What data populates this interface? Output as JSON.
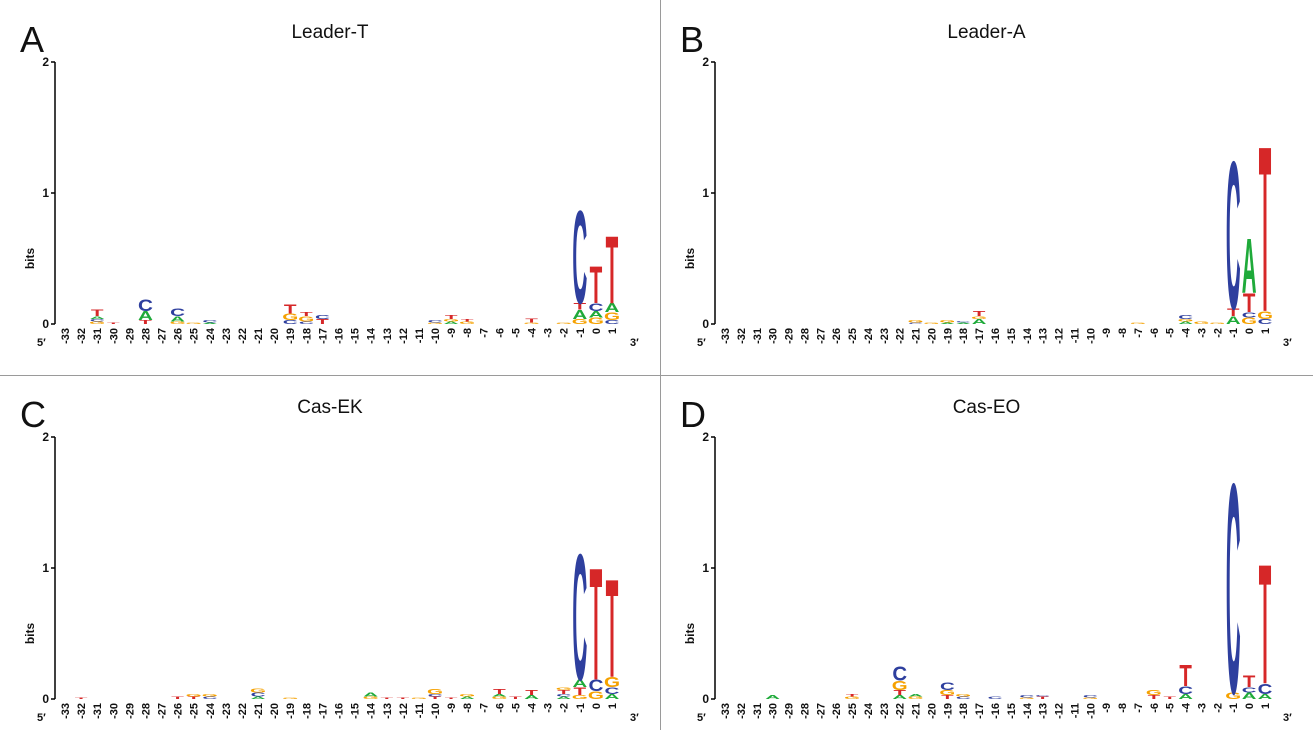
{
  "figure": {
    "colors": {
      "A": "#1faa3a",
      "C": "#2e3f9e",
      "G": "#f5a100",
      "T": "#d62728",
      "axis": "#000000",
      "divider": "#9a9a9a"
    },
    "five_prime": "5′",
    "three_prime": "3′",
    "ylabel": "bits",
    "yticks": [
      "0",
      "1",
      "2"
    ]
  },
  "chart_data": [
    {
      "type": "sequence-logo",
      "panel_letter": "A",
      "title": "Leader-T",
      "ylabel": "bits",
      "ylim": [
        0,
        2
      ],
      "positions": [
        "-33",
        "-32",
        "-31",
        "-30",
        "-29",
        "-28",
        "-27",
        "-26",
        "-25",
        "-24",
        "-23",
        "-22",
        "-21",
        "-20",
        "-19",
        "-18",
        "-17",
        "-16",
        "-15",
        "-14",
        "-13",
        "-12",
        "-11",
        "-10",
        "-9",
        "-8",
        "-7",
        "-6",
        "-5",
        "-4",
        "-3",
        "-2",
        "-1",
        "0",
        "1"
      ],
      "stacks": [
        [],
        [],
        [
          [
            "G",
            0.02
          ],
          [
            "C",
            0.02
          ],
          [
            "A",
            0.02
          ],
          [
            "T",
            0.05
          ]
        ],
        [
          [
            "T",
            0.01
          ]
        ],
        [],
        [
          [
            "T",
            0.03
          ],
          [
            "A",
            0.07
          ],
          [
            "C",
            0.09
          ]
        ],
        [],
        [
          [
            "G",
            0.02
          ],
          [
            "A",
            0.04
          ],
          [
            "C",
            0.06
          ]
        ],
        [
          [
            "G",
            0.01
          ]
        ],
        [
          [
            "A",
            0.01
          ],
          [
            "C",
            0.02
          ]
        ],
        [],
        [],
        [],
        [],
        [
          [
            "C",
            0.03
          ],
          [
            "G",
            0.05
          ],
          [
            "T",
            0.07
          ]
        ],
        [
          [
            "C",
            0.02
          ],
          [
            "G",
            0.04
          ],
          [
            "T",
            0.03
          ]
        ],
        [
          [
            "T",
            0.04
          ],
          [
            "C",
            0.03
          ]
        ],
        [],
        [],
        [],
        [],
        [],
        [],
        [
          [
            "G",
            0.01
          ],
          [
            "C",
            0.02
          ]
        ],
        [
          [
            "A",
            0.02
          ],
          [
            "G",
            0.02
          ],
          [
            "T",
            0.03
          ]
        ],
        [
          [
            "G",
            0.02
          ],
          [
            "T",
            0.02
          ]
        ],
        [],
        [],
        [],
        [
          [
            "G",
            0.01
          ],
          [
            "T",
            0.03
          ]
        ],
        [],
        [
          [
            "G",
            0.01
          ]
        ],
        [
          [
            "G",
            0.04
          ],
          [
            "A",
            0.07
          ],
          [
            "T",
            0.05
          ],
          [
            "C",
            0.73
          ]
        ],
        [
          [
            "G",
            0.05
          ],
          [
            "A",
            0.05
          ],
          [
            "C",
            0.06
          ],
          [
            "T",
            0.29
          ]
        ],
        [
          [
            "C",
            0.03
          ],
          [
            "G",
            0.06
          ],
          [
            "A",
            0.07
          ],
          [
            "T",
            0.53
          ]
        ]
      ]
    },
    {
      "type": "sequence-logo",
      "panel_letter": "B",
      "title": "Leader-A",
      "ylabel": "bits",
      "ylim": [
        0,
        2
      ],
      "positions": [
        "-33",
        "-32",
        "-31",
        "-30",
        "-29",
        "-28",
        "-27",
        "-26",
        "-25",
        "-24",
        "-23",
        "-22",
        "-21",
        "-20",
        "-19",
        "-18",
        "-17",
        "-16",
        "-15",
        "-14",
        "-13",
        "-12",
        "-11",
        "-10",
        "-9",
        "-8",
        "-7",
        "-6",
        "-5",
        "-4",
        "-3",
        "-2",
        "-1",
        "0",
        "1"
      ],
      "stacks": [
        [],
        [],
        [],
        [],
        [],
        [],
        [],
        [],
        [],
        [],
        [],
        [],
        [
          [
            "C",
            0.01
          ],
          [
            "G",
            0.02
          ]
        ],
        [
          [
            "G",
            0.01
          ]
        ],
        [
          [
            "A",
            0.01
          ],
          [
            "G",
            0.02
          ]
        ],
        [
          [
            "A",
            0.01
          ],
          [
            "C",
            0.01
          ]
        ],
        [
          [
            "A",
            0.04
          ],
          [
            "G",
            0.02
          ],
          [
            "T",
            0.04
          ]
        ],
        [],
        [],
        [],
        [],
        [],
        [],
        [],
        [],
        [],
        [
          [
            "G",
            0.01
          ]
        ],
        [],
        [],
        [
          [
            "A",
            0.02
          ],
          [
            "G",
            0.02
          ],
          [
            "C",
            0.03
          ]
        ],
        [
          [
            "G",
            0.02
          ]
        ],
        [
          [
            "G",
            0.01
          ]
        ],
        [
          [
            "A",
            0.06
          ],
          [
            "T",
            0.06
          ],
          [
            "C",
            1.16
          ]
        ],
        [
          [
            "G",
            0.05
          ],
          [
            "C",
            0.04
          ],
          [
            "T",
            0.15
          ],
          [
            "A",
            0.43
          ]
        ],
        [
          [
            "C",
            0.04
          ],
          [
            "G",
            0.06
          ],
          [
            "T",
            1.3
          ]
        ]
      ]
    },
    {
      "type": "sequence-logo",
      "panel_letter": "C",
      "title": "Cas-EK",
      "ylabel": "bits",
      "ylim": [
        0,
        2
      ],
      "positions": [
        "-33",
        "-32",
        "-31",
        "-30",
        "-29",
        "-28",
        "-27",
        "-26",
        "-25",
        "-24",
        "-23",
        "-22",
        "-21",
        "-20",
        "-19",
        "-18",
        "-17",
        "-16",
        "-15",
        "-14",
        "-13",
        "-12",
        "-11",
        "-10",
        "-9",
        "-8",
        "-7",
        "-6",
        "-5",
        "-4",
        "-3",
        "-2",
        "-1",
        "0",
        "1"
      ],
      "stacks": [
        [],
        [
          [
            "T",
            0.01
          ]
        ],
        [],
        [],
        [],
        [],
        [],
        [
          [
            "T",
            0.02
          ]
        ],
        [
          [
            "T",
            0.02
          ],
          [
            "G",
            0.02
          ]
        ],
        [
          [
            "C",
            0.02
          ],
          [
            "G",
            0.02
          ]
        ],
        [],
        [],
        [
          [
            "A",
            0.02
          ],
          [
            "C",
            0.03
          ],
          [
            "G",
            0.03
          ]
        ],
        [],
        [
          [
            "G",
            0.01
          ]
        ],
        [],
        [],
        [],
        [],
        [
          [
            "G",
            0.02
          ],
          [
            "A",
            0.03
          ]
        ],
        [
          [
            "T",
            0.01
          ]
        ],
        [
          [
            "T",
            0.01
          ]
        ],
        [
          [
            "G",
            0.01
          ]
        ],
        [
          [
            "T",
            0.02
          ],
          [
            "C",
            0.02
          ],
          [
            "G",
            0.04
          ]
        ],
        [
          [
            "T",
            0.01
          ]
        ],
        [
          [
            "A",
            0.02
          ],
          [
            "G",
            0.02
          ]
        ],
        [],
        [
          [
            "G",
            0.02
          ],
          [
            "A",
            0.02
          ],
          [
            "T",
            0.04
          ]
        ],
        [
          [
            "T",
            0.02
          ]
        ],
        [
          [
            "A",
            0.03
          ],
          [
            "T",
            0.04
          ]
        ],
        [],
        [
          [
            "A",
            0.02
          ],
          [
            "C",
            0.02
          ],
          [
            "T",
            0.03
          ],
          [
            "G",
            0.02
          ]
        ],
        [
          [
            "G",
            0.03
          ],
          [
            "T",
            0.06
          ],
          [
            "A",
            0.06
          ],
          [
            "C",
            0.99
          ]
        ],
        [
          [
            "G",
            0.06
          ],
          [
            "C",
            0.09
          ],
          [
            "T",
            0.88
          ]
        ],
        [
          [
            "A",
            0.04
          ],
          [
            "C",
            0.05
          ],
          [
            "G",
            0.08
          ],
          [
            "T",
            0.77
          ]
        ]
      ]
    },
    {
      "type": "sequence-logo",
      "panel_letter": "D",
      "title": "Cas-EO",
      "ylabel": "bits",
      "ylim": [
        0,
        2
      ],
      "positions": [
        "-33",
        "-32",
        "-31",
        "-30",
        "-29",
        "-28",
        "-27",
        "-26",
        "-25",
        "-24",
        "-23",
        "-22",
        "-21",
        "-20",
        "-19",
        "-18",
        "-17",
        "-16",
        "-15",
        "-14",
        "-13",
        "-12",
        "-11",
        "-10",
        "-9",
        "-8",
        "-7",
        "-6",
        "-5",
        "-4",
        "-3",
        "-2",
        "-1",
        "0",
        "1"
      ],
      "stacks": [
        [],
        [],
        [],
        [
          [
            "A",
            0.03
          ]
        ],
        [],
        [],
        [],
        [],
        [
          [
            "G",
            0.02
          ],
          [
            "T",
            0.02
          ]
        ],
        [],
        [],
        [
          [
            "A",
            0.03
          ],
          [
            "T",
            0.04
          ],
          [
            "G",
            0.07
          ],
          [
            "C",
            0.11
          ]
        ],
        [
          [
            "G",
            0.02
          ],
          [
            "A",
            0.02
          ]
        ],
        [],
        [
          [
            "T",
            0.03
          ],
          [
            "G",
            0.04
          ],
          [
            "C",
            0.06
          ]
        ],
        [
          [
            "C",
            0.02
          ],
          [
            "G",
            0.02
          ]
        ],
        [],
        [
          [
            "C",
            0.02
          ]
        ],
        [],
        [
          [
            "G",
            0.01
          ],
          [
            "C",
            0.02
          ]
        ],
        [
          [
            "T",
            0.02
          ],
          [
            "C",
            0.01
          ]
        ],
        [],
        [],
        [
          [
            "G",
            0.01
          ],
          [
            "C",
            0.02
          ]
        ],
        [],
        [],
        [],
        [
          [
            "T",
            0.03
          ],
          [
            "G",
            0.04
          ]
        ],
        [
          [
            "T",
            0.02
          ]
        ],
        [
          [
            "A",
            0.04
          ],
          [
            "C",
            0.06
          ],
          [
            "T",
            0.17
          ]
        ],
        [],
        [],
        [
          [
            "G",
            0.05
          ],
          [
            "C",
            1.65
          ]
        ],
        [
          [
            "A",
            0.05
          ],
          [
            "C",
            0.04
          ],
          [
            "T",
            0.09
          ]
        ],
        [
          [
            "A",
            0.04
          ],
          [
            "C",
            0.08
          ],
          [
            "T",
            0.94
          ]
        ]
      ]
    }
  ]
}
